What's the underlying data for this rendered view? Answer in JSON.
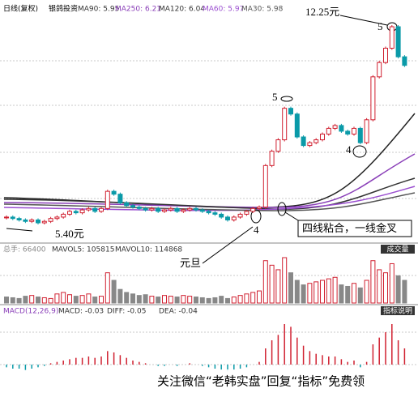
{
  "header": {
    "period": "日线(复权)",
    "stock": "银鸽投资",
    "ma": [
      "MA90: 5.95",
      "MA250: 6.21",
      "MA120: 6.04",
      "MA60: 5.97",
      "MA30: 5.98"
    ]
  },
  "annotations": {
    "high": "12.25元",
    "high_mark": "5",
    "mid_mark": "5",
    "low_mark_right": "4",
    "low_mark_left": "4",
    "low": "5.40元",
    "cross": "四线粘合，一线金叉",
    "new_year": "元旦"
  },
  "volume_header": {
    "total": "总手: 66400",
    "mavol5": "MAVOL5: 105815",
    "mavol10": "MAVOL10: 114868",
    "button": "成交量"
  },
  "macd_header": {
    "name": "MACD(12,26,9)",
    "macd": "MACD: -0.03",
    "diff": "DIFF: -0.05",
    "dea": "DEA: -0.04",
    "button": "指标说明"
  },
  "watermark": "关注微信“老韩实盘”回复“指标”免费领",
  "chart_data": {
    "type": "candlestick",
    "closes": [
      5.6,
      5.55,
      5.5,
      5.45,
      5.5,
      5.4,
      5.45,
      5.55,
      5.6,
      5.7,
      5.8,
      5.75,
      5.85,
      5.9,
      5.8,
      5.9,
      6.5,
      6.4,
      6.1,
      6.0,
      5.95,
      5.9,
      5.85,
      5.9,
      5.8,
      5.85,
      5.9,
      5.8,
      5.85,
      5.9,
      5.85,
      5.8,
      5.75,
      5.7,
      5.6,
      5.5,
      5.6,
      5.7,
      5.8,
      5.9,
      5.95,
      7.4,
      7.9,
      8.3,
      9.4,
      9.2,
      8.4,
      8.1,
      8.2,
      8.3,
      8.5,
      8.7,
      8.8,
      8.6,
      8.5,
      8.7,
      8.2,
      9.0,
      10.5,
      11.0,
      11.5,
      12.25,
      11.2,
      10.9
    ],
    "volumes": [
      40,
      35,
      30,
      45,
      50,
      40,
      35,
      30,
      60,
      70,
      55,
      45,
      50,
      60,
      40,
      45,
      200,
      150,
      90,
      70,
      60,
      50,
      55,
      45,
      40,
      50,
      45,
      40,
      50,
      45,
      40,
      35,
      30,
      35,
      45,
      30,
      40,
      50,
      60,
      70,
      80,
      280,
      250,
      220,
      300,
      200,
      150,
      120,
      130,
      140,
      150,
      160,
      170,
      120,
      110,
      130,
      100,
      150,
      280,
      220,
      200,
      260,
      180,
      150
    ],
    "macd": [
      -0.02,
      -0.03,
      -0.03,
      -0.04,
      -0.03,
      -0.02,
      -0.01,
      0.01,
      0.02,
      0.03,
      0.04,
      0.05,
      0.05,
      0.06,
      0.05,
      0.06,
      0.1,
      0.09,
      0.07,
      0.05,
      0.03,
      0.02,
      0.01,
      0.0,
      -0.01,
      -0.01,
      0.0,
      -0.01,
      0.0,
      0.01,
      0.0,
      -0.01,
      -0.02,
      -0.03,
      -0.04,
      -0.05,
      -0.04,
      -0.03,
      -0.02,
      0.0,
      0.02,
      0.12,
      0.18,
      0.22,
      0.3,
      0.28,
      0.2,
      0.14,
      0.1,
      0.08,
      0.07,
      0.06,
      0.06,
      0.04,
      0.02,
      0.03,
      -0.02,
      0.02,
      0.15,
      0.2,
      0.24,
      0.3,
      0.18,
      0.12
    ]
  }
}
